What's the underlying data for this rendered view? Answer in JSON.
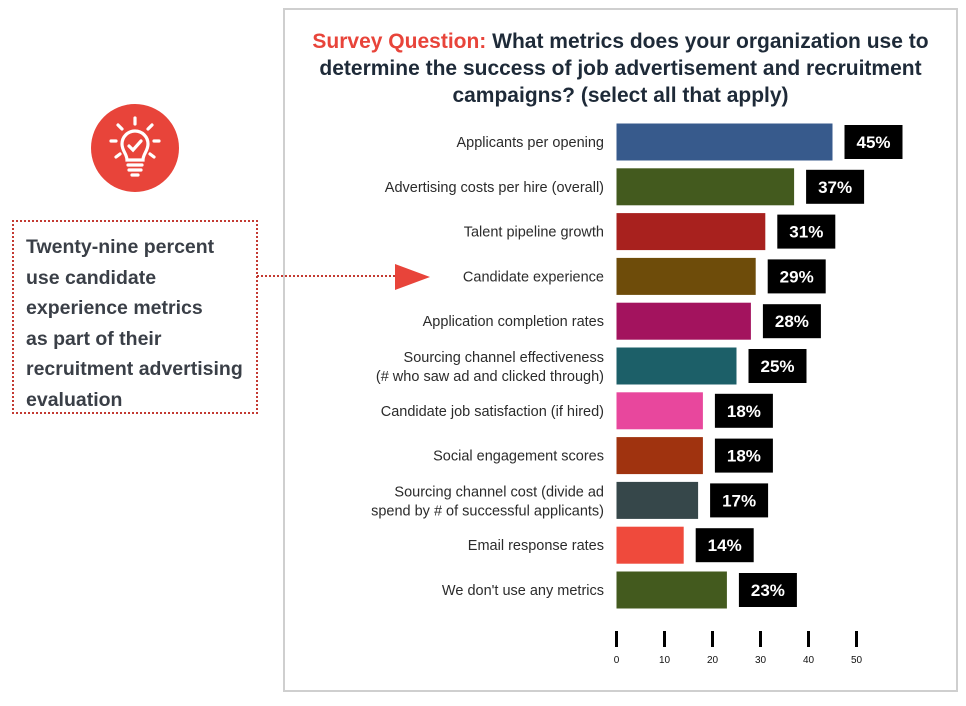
{
  "callout": {
    "icon": "lightbulb-check-icon",
    "lines": [
      "Twenty-nine percent",
      "use candidate",
      "experience metrics",
      "as part of their",
      "recruitment advertising",
      "evaluation"
    ]
  },
  "colors": {
    "accent": "#e8443a",
    "label_box": "#000000"
  },
  "chart_data": {
    "type": "bar",
    "orientation": "horizontal",
    "title_lead": "Survey Question:",
    "title_lines": [
      "What metrics does your organization use to",
      "determine the success of job advertisement and recruitment",
      "campaigns? (select all that apply)"
    ],
    "categories": [
      [
        "Applicants per opening"
      ],
      [
        "Advertising costs per hire (overall)"
      ],
      [
        "Talent pipeline growth"
      ],
      [
        "Candidate experience"
      ],
      [
        "Application completion rates"
      ],
      [
        "Sourcing channel effectiveness",
        "(# who saw ad and clicked through)"
      ],
      [
        "Candidate job satisfaction (if hired)"
      ],
      [
        "Social engagement scores"
      ],
      [
        "Sourcing channel cost (divide ad",
        "spend by # of successful applicants)"
      ],
      [
        "Email response rates"
      ],
      [
        "We don't use any metrics"
      ]
    ],
    "values": [
      45,
      37,
      31,
      29,
      28,
      25,
      18,
      18,
      17,
      14,
      23
    ],
    "value_labels": [
      "45%",
      "37%",
      "31%",
      "29%",
      "28%",
      "25%",
      "18%",
      "18%",
      "17%",
      "14%",
      "23%"
    ],
    "colors": [
      "#375a8c",
      "#435a1e",
      "#a8211e",
      "#6e4c0a",
      "#a3135e",
      "#1c5f68",
      "#e8479d",
      "#a0330f",
      "#36474a",
      "#ef4a3c",
      "#435a1e"
    ],
    "xlim": [
      0,
      50
    ],
    "xticks": [
      0,
      10,
      20,
      30,
      40,
      50
    ],
    "xtick_labels": [
      "0",
      "10",
      "20",
      "30",
      "40",
      "50"
    ],
    "xlabel": "",
    "ylabel": ""
  }
}
